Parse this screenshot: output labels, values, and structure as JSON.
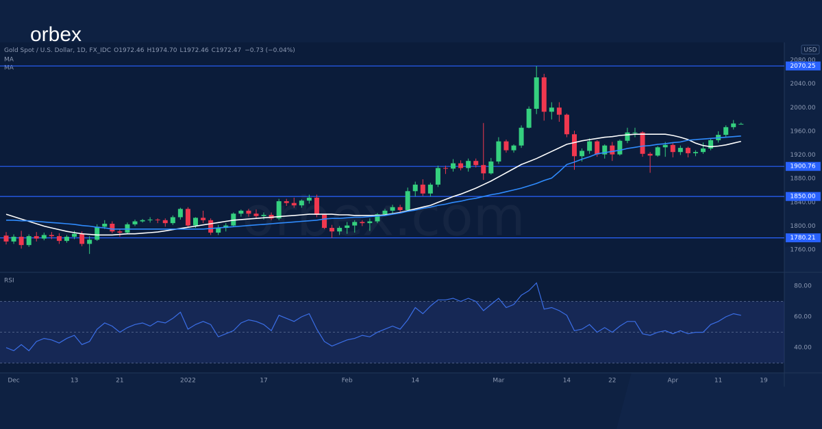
{
  "brand": {
    "logo": "orbex",
    "watermark": "orbex.com"
  },
  "chart_data": {
    "type": "candlestick",
    "symbol": "Gold Spot / U.S. Dollar, 1D, FX_IDC",
    "ohlc_keys": [
      "O",
      "H",
      "L",
      "C"
    ],
    "ohlc_labels": [
      "1972.46",
      "1974.70",
      "1972.46",
      "1972.47"
    ],
    "change": "−0.73 (−0.04%)",
    "currency": "USD",
    "categories": [
      null,
      "Dec",
      null,
      null,
      null,
      null,
      null,
      null,
      null,
      "13",
      null,
      null,
      null,
      null,
      null,
      "21",
      null,
      null,
      null,
      null,
      null,
      null,
      null,
      null,
      "2022",
      null,
      null,
      null,
      null,
      null,
      null,
      null,
      null,
      null,
      "17",
      null,
      null,
      null,
      null,
      null,
      null,
      null,
      null,
      null,
      null,
      "Feb",
      null,
      null,
      null,
      null,
      null,
      null,
      null,
      null,
      "14",
      null,
      null,
      null,
      null,
      null,
      null,
      null,
      null,
      null,
      null,
      "Mar",
      null,
      null,
      null,
      null,
      null,
      null,
      null,
      null,
      "14",
      null,
      null,
      null,
      null,
      null,
      "22",
      null,
      null,
      null,
      null,
      null,
      null,
      null,
      "Apr",
      null,
      null,
      null,
      null,
      null,
      "11",
      null,
      null,
      null,
      null,
      null,
      "19"
    ],
    "open": [
      1784,
      1774,
      1782,
      1768,
      1783,
      1779,
      1785,
      1783,
      1775,
      1782,
      1787,
      1770,
      1777,
      1799,
      1804,
      1791,
      1789,
      1803,
      1808,
      1810,
      1811,
      1810,
      1805,
      1815,
      1829,
      1801,
      1814,
      1810,
      1789,
      1797,
      1801,
      1821,
      1826,
      1821,
      1817,
      1819,
      1813,
      1842,
      1839,
      1835,
      1843,
      1848,
      1819,
      1797,
      1791,
      1797,
      1801,
      1807,
      1805,
      1808,
      1820,
      1826,
      1832,
      1827,
      1859,
      1870,
      1855,
      1870,
      1898,
      1897,
      1906,
      1898,
      1910,
      1903,
      1889,
      1909,
      1943,
      1928,
      1936,
      1966,
      1998,
      2051,
      1993,
      2000,
      1988,
      1955,
      1918,
      1927,
      1943,
      1921,
      1936,
      1921,
      1944,
      1958,
      1958,
      1922,
      1919,
      1933,
      1937,
      1925,
      1932,
      1923,
      1925,
      1931,
      1945,
      1954,
      1967,
      1972.46,
      null,
      null,
      null
    ],
    "high": [
      1790,
      1786,
      1792,
      1786,
      1790,
      1789,
      1790,
      1788,
      1785,
      1792,
      1791,
      1783,
      1803,
      1810,
      1808,
      1795,
      1806,
      1811,
      1812,
      1815,
      1813,
      1813,
      1818,
      1831,
      1832,
      1815,
      1826,
      1813,
      1802,
      1805,
      1823,
      1828,
      1829,
      1828,
      1823,
      1823,
      1846,
      1846,
      1848,
      1845,
      1853,
      1853,
      1820,
      1802,
      1800,
      1807,
      1810,
      1810,
      1813,
      1822,
      1829,
      1836,
      1836,
      1865,
      1875,
      1879,
      1873,
      1902,
      1902,
      1913,
      1911,
      1914,
      1914,
      1974,
      1915,
      1950,
      1946,
      1938,
      1970,
      2002,
      2070,
      2057,
      2009,
      2009,
      1990,
      1961,
      1931,
      1948,
      1945,
      1938,
      1942,
      1946,
      1966,
      1966,
      1960,
      1925,
      1935,
      1942,
      1940,
      1936,
      1934,
      1928,
      1941,
      1948,
      1960,
      1970,
      1979,
      1974.7,
      null,
      null,
      null
    ],
    "low": [
      1769,
      1770,
      1762,
      1765,
      1774,
      1776,
      1778,
      1770,
      1772,
      1778,
      1766,
      1753,
      1775,
      1795,
      1788,
      1782,
      1786,
      1800,
      1806,
      1806,
      1805,
      1799,
      1802,
      1811,
      1798,
      1797,
      1805,
      1785,
      1785,
      1791,
      1799,
      1816,
      1816,
      1812,
      1811,
      1810,
      1810,
      1834,
      1831,
      1831,
      1838,
      1815,
      1795,
      1780,
      1785,
      1787,
      1789,
      1800,
      1792,
      1805,
      1817,
      1820,
      1822,
      1825,
      1850,
      1851,
      1850,
      1866,
      1888,
      1892,
      1894,
      1892,
      1899,
      1878,
      1887,
      1905,
      1924,
      1924,
      1932,
      1965,
      1989,
      1978,
      1980,
      1976,
      1950,
      1895,
      1909,
      1922,
      1917,
      1914,
      1910,
      1919,
      1940,
      1950,
      1917,
      1890,
      1917,
      1917,
      1916,
      1920,
      1916,
      1918,
      1922,
      1928,
      1941,
      1950,
      1963,
      1972.46,
      null,
      null,
      null
    ],
    "close": [
      1774,
      1782,
      1768,
      1783,
      1779,
      1785,
      1783,
      1775,
      1782,
      1787,
      1770,
      1777,
      1799,
      1804,
      1791,
      1789,
      1803,
      1808,
      1810,
      1811,
      1810,
      1805,
      1815,
      1829,
      1801,
      1814,
      1810,
      1789,
      1797,
      1801,
      1821,
      1826,
      1821,
      1817,
      1819,
      1813,
      1842,
      1839,
      1835,
      1843,
      1848,
      1819,
      1797,
      1791,
      1797,
      1801,
      1807,
      1805,
      1808,
      1820,
      1826,
      1832,
      1827,
      1859,
      1870,
      1855,
      1870,
      1898,
      1897,
      1906,
      1898,
      1910,
      1903,
      1889,
      1909,
      1943,
      1928,
      1936,
      1966,
      1998,
      2051,
      1993,
      2000,
      1988,
      1955,
      1918,
      1927,
      1943,
      1921,
      1936,
      1921,
      1944,
      1958,
      1958,
      1922,
      1919,
      1933,
      1937,
      1925,
      1932,
      1923,
      1925,
      1931,
      1945,
      1954,
      1967,
      1973.2,
      1972.47,
      null,
      null,
      null
    ],
    "up_color": "#35d07f",
    "down_color": "#f0384f",
    "series": [
      {
        "name": "MA",
        "color": "#ffffff",
        "values": [
          1820,
          1816,
          1812,
          1808,
          1804,
          1800,
          1797,
          1794,
          1791,
          1789,
          1787,
          1786,
          1785,
          1785,
          1785,
          1786,
          1787,
          1787,
          1788,
          1789,
          1790,
          1792,
          1794,
          1796,
          1798,
          1800,
          1802,
          1804,
          1806,
          1808,
          1810,
          1811,
          1812,
          1813,
          1814,
          1815,
          1816,
          1817,
          1818,
          1819,
          1820,
          1820,
          1820,
          1820,
          1819,
          1819,
          1818,
          1818,
          1818,
          1818,
          1819,
          1821,
          1823,
          1826,
          1829,
          1832,
          1835,
          1840,
          1845,
          1850,
          1854,
          1859,
          1864,
          1870,
          1876,
          1883,
          1890,
          1897,
          1904,
          1909,
          1914,
          1920,
          1926,
          1932,
          1938,
          1941,
          1944,
          1946,
          1948,
          1950,
          1951,
          1953,
          1954,
          1955,
          1955,
          1955,
          1955,
          1955,
          1953,
          1950,
          1946,
          1940,
          1936,
          1934,
          1935,
          1937,
          1940,
          1943,
          null,
          null,
          null
        ]
      },
      {
        "name": "MA",
        "color": "#2f8cff",
        "values": [
          1810,
          1810,
          1809,
          1809,
          1808,
          1807,
          1806,
          1805,
          1804,
          1803,
          1801,
          1800,
          1798,
          1797,
          1795,
          1795,
          1795,
          1795,
          1795,
          1795,
          1795,
          1795,
          1795,
          1795,
          1795,
          1795,
          1795,
          1796,
          1797,
          1798,
          1799,
          1800,
          1801,
          1802,
          1803,
          1804,
          1805,
          1806,
          1807,
          1808,
          1809,
          1810,
          1812,
          1813,
          1813,
          1814,
          1815,
          1815,
          1816,
          1817,
          1818,
          1820,
          1822,
          1825,
          1827,
          1830,
          1832,
          1835,
          1837,
          1840,
          1842,
          1845,
          1847,
          1850,
          1853,
          1855,
          1858,
          1861,
          1864,
          1868,
          1872,
          1877,
          1881,
          1892,
          1904,
          1908,
          1913,
          1917,
          1922,
          1924,
          1926,
          1928,
          1931,
          1933,
          1935,
          1936,
          1938,
          1939,
          1941,
          1942,
          1945,
          1946,
          1947,
          1948,
          1949,
          1950,
          1951,
          1952,
          null,
          null,
          null
        ]
      }
    ],
    "ylim": [
      1722,
      2110
    ],
    "yticks": [
      {
        "value": 2080,
        "label": "2080.00"
      },
      {
        "value": 2040,
        "label": "2040.00"
      },
      {
        "value": 2000,
        "label": "2000.00"
      },
      {
        "value": 1960,
        "label": "1960.00"
      },
      {
        "value": 1920,
        "label": "1920.00"
      },
      {
        "value": 1880,
        "label": "1880.00"
      },
      {
        "value": 1840,
        "label": "1840.00"
      },
      {
        "value": 1800,
        "label": "1800.00"
      },
      {
        "value": 1760,
        "label": "1760.00"
      }
    ],
    "levels": [
      2070.25,
      1900.76,
      {
        "value": 1850,
        "label": "1850.00"
      },
      1780.21
    ],
    "level_color": "#2962ff",
    "rsi": {
      "title": "RSI",
      "color": "#3b6fe8",
      "values": [
        40,
        38,
        42,
        38,
        44,
        46,
        45,
        43,
        46,
        48,
        42,
        44,
        52,
        56,
        54,
        50,
        53,
        55,
        56,
        54,
        57,
        56,
        59,
        63,
        52,
        55,
        57,
        55,
        47,
        49,
        51,
        56,
        58,
        57,
        55,
        51,
        61,
        59,
        57,
        60,
        62,
        52,
        44,
        41,
        43,
        45,
        46,
        48,
        47,
        50,
        52,
        54,
        52,
        58,
        66,
        62,
        67,
        71,
        71,
        72,
        70,
        72,
        70,
        64,
        68,
        72,
        66,
        68,
        74,
        77,
        82,
        65,
        66,
        64,
        61,
        51,
        52,
        55,
        50,
        53,
        50,
        54,
        57,
        57,
        49,
        48,
        50,
        51,
        49,
        51,
        49,
        50,
        50,
        55,
        57,
        60,
        62,
        61,
        null,
        null,
        null
      ],
      "ylim": [
        23.6,
        88
      ],
      "yticks": [
        {
          "value": 80,
          "label": "80.00"
        },
        {
          "value": 60,
          "label": "60.00"
        },
        {
          "value": 40,
          "label": "40.00"
        }
      ],
      "levels": [
        70,
        50,
        30
      ]
    }
  }
}
